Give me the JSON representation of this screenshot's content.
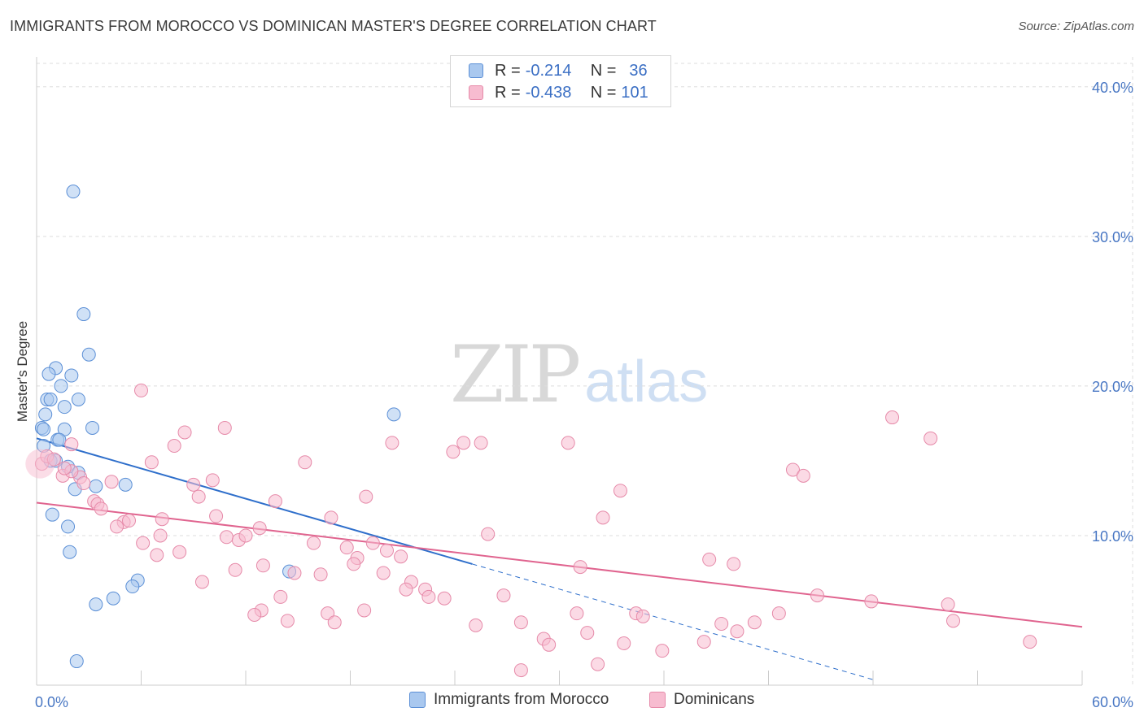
{
  "title": "IMMIGRANTS FROM MOROCCO VS DOMINICAN MASTER'S DEGREE CORRELATION CHART",
  "source": "Source: ZipAtlas.com",
  "watermark": {
    "zip": "ZIP",
    "atlas": "atlas"
  },
  "legend": {
    "series1": {
      "r_label": "R =",
      "r_value": "-0.214",
      "n_label": "N =",
      "n_value": "36"
    },
    "series2": {
      "r_label": "R =",
      "r_value": "-0.438",
      "n_label": "N =",
      "n_value": "101"
    }
  },
  "bottom_legend": {
    "series1": "Immigrants from Morocco",
    "series2": "Dominicans"
  },
  "colors": {
    "series1_fill": "#a9c8ef",
    "series1_stroke": "#5b8fd6",
    "series1_line": "#2f6fcb",
    "series2_fill": "#f7bcd0",
    "series2_stroke": "#e68aa9",
    "series2_line": "#e0648f",
    "grid": "#dddddd",
    "tick_text": "#4a78c4"
  },
  "chart_data": {
    "type": "scatter",
    "title": "IMMIGRANTS FROM MOROCCO VS DOMINICAN MASTER'S DEGREE CORRELATION CHART",
    "xlabel": "",
    "ylabel": "Master's Degree",
    "xlim": [
      0,
      60
    ],
    "ylim": [
      0,
      42
    ],
    "x_tick_labels": [
      "0.0%",
      "60.0%"
    ],
    "y_ticks": [
      10,
      20,
      30,
      40
    ],
    "y_tick_labels": [
      "10.0%",
      "20.0%",
      "30.0%",
      "40.0%"
    ],
    "grid": true,
    "legend_position": "top-center",
    "series": [
      {
        "name": "Immigrants from Morocco",
        "R": -0.214,
        "N": 36,
        "trend": {
          "x0": 0,
          "y0": 16.5,
          "x1": 25,
          "y1": 8.1,
          "dash_to_x": 48
        },
        "points": [
          [
            2.1,
            33.0
          ],
          [
            2.7,
            24.8
          ],
          [
            3.0,
            22.1
          ],
          [
            1.1,
            21.2
          ],
          [
            0.7,
            20.8
          ],
          [
            2.0,
            20.7
          ],
          [
            1.4,
            20.0
          ],
          [
            0.6,
            19.1
          ],
          [
            0.8,
            19.1
          ],
          [
            2.4,
            19.1
          ],
          [
            1.6,
            18.6
          ],
          [
            0.5,
            18.1
          ],
          [
            20.5,
            18.1
          ],
          [
            0.3,
            17.2
          ],
          [
            0.4,
            17.1
          ],
          [
            1.6,
            17.1
          ],
          [
            3.2,
            17.2
          ],
          [
            1.2,
            16.4
          ],
          [
            1.3,
            16.4
          ],
          [
            0.4,
            16.0
          ],
          [
            0.8,
            15.0
          ],
          [
            1.1,
            15.0
          ],
          [
            1.8,
            14.6
          ],
          [
            2.4,
            14.2
          ],
          [
            5.1,
            13.4
          ],
          [
            2.2,
            13.1
          ],
          [
            3.4,
            13.3
          ],
          [
            0.9,
            11.4
          ],
          [
            1.8,
            10.6
          ],
          [
            1.9,
            8.9
          ],
          [
            14.5,
            7.6
          ],
          [
            5.8,
            7.0
          ],
          [
            5.5,
            6.6
          ],
          [
            4.4,
            5.8
          ],
          [
            3.4,
            5.4
          ],
          [
            2.3,
            1.6
          ]
        ]
      },
      {
        "name": "Dominicans",
        "R": -0.438,
        "N": 101,
        "trend": {
          "x0": 0,
          "y0": 12.2,
          "x1": 60,
          "y1": 3.9
        },
        "points": [
          [
            0.3,
            14.8
          ],
          [
            6.0,
            19.7
          ],
          [
            0.6,
            15.3
          ],
          [
            1.0,
            15.1
          ],
          [
            2.0,
            16.1
          ],
          [
            8.5,
            16.9
          ],
          [
            10.8,
            17.2
          ],
          [
            7.9,
            16.0
          ],
          [
            6.6,
            14.9
          ],
          [
            15.4,
            14.9
          ],
          [
            20.4,
            16.2
          ],
          [
            24.5,
            16.2
          ],
          [
            25.5,
            16.2
          ],
          [
            30.5,
            16.2
          ],
          [
            49.1,
            17.9
          ],
          [
            51.3,
            16.5
          ],
          [
            43.4,
            14.4
          ],
          [
            44.0,
            14.0
          ],
          [
            1.5,
            14.0
          ],
          [
            2.5,
            13.9
          ],
          [
            2.7,
            13.5
          ],
          [
            4.3,
            13.6
          ],
          [
            9.0,
            13.4
          ],
          [
            10.1,
            13.7
          ],
          [
            2.0,
            14.3
          ],
          [
            9.3,
            12.6
          ],
          [
            13.7,
            12.3
          ],
          [
            18.9,
            12.6
          ],
          [
            33.5,
            13.0
          ],
          [
            3.3,
            12.3
          ],
          [
            3.5,
            12.1
          ],
          [
            3.7,
            11.8
          ],
          [
            7.2,
            11.1
          ],
          [
            10.3,
            11.3
          ],
          [
            16.9,
            11.2
          ],
          [
            32.5,
            11.2
          ],
          [
            5.0,
            10.9
          ],
          [
            5.3,
            11.0
          ],
          [
            4.6,
            10.6
          ],
          [
            12.8,
            10.5
          ],
          [
            7.1,
            10.0
          ],
          [
            10.9,
            9.9
          ],
          [
            11.6,
            9.7
          ],
          [
            6.1,
            9.5
          ],
          [
            15.9,
            9.5
          ],
          [
            17.8,
            9.2
          ],
          [
            19.3,
            9.5
          ],
          [
            20.1,
            9.0
          ],
          [
            25.9,
            10.1
          ],
          [
            6.9,
            8.7
          ],
          [
            8.2,
            8.9
          ],
          [
            18.4,
            8.5
          ],
          [
            20.9,
            8.6
          ],
          [
            11.4,
            7.7
          ],
          [
            13.0,
            8.0
          ],
          [
            14.8,
            7.5
          ],
          [
            16.3,
            7.4
          ],
          [
            19.9,
            7.5
          ],
          [
            31.2,
            7.9
          ],
          [
            38.6,
            8.4
          ],
          [
            40.0,
            8.1
          ],
          [
            9.5,
            6.9
          ],
          [
            21.5,
            6.9
          ],
          [
            21.2,
            6.4
          ],
          [
            22.3,
            6.4
          ],
          [
            22.5,
            5.9
          ],
          [
            23.4,
            5.8
          ],
          [
            14.0,
            5.9
          ],
          [
            26.8,
            6.0
          ],
          [
            44.8,
            6.0
          ],
          [
            47.9,
            5.6
          ],
          [
            52.3,
            5.4
          ],
          [
            12.9,
            5.0
          ],
          [
            12.5,
            4.7
          ],
          [
            16.7,
            4.8
          ],
          [
            18.8,
            5.0
          ],
          [
            17.1,
            4.2
          ],
          [
            14.4,
            4.3
          ],
          [
            31.0,
            4.8
          ],
          [
            34.4,
            4.8
          ],
          [
            34.8,
            4.6
          ],
          [
            42.6,
            4.8
          ],
          [
            25.2,
            4.0
          ],
          [
            27.8,
            4.2
          ],
          [
            39.3,
            4.1
          ],
          [
            40.2,
            3.6
          ],
          [
            41.2,
            4.2
          ],
          [
            52.6,
            4.3
          ],
          [
            31.6,
            3.5
          ],
          [
            29.1,
            3.1
          ],
          [
            29.4,
            2.7
          ],
          [
            33.7,
            2.8
          ],
          [
            35.9,
            2.3
          ],
          [
            38.3,
            2.9
          ],
          [
            57.0,
            2.9
          ],
          [
            27.8,
            1.0
          ],
          [
            32.2,
            1.4
          ],
          [
            23.9,
            15.6
          ],
          [
            1.6,
            14.5
          ],
          [
            12.0,
            10.0
          ],
          [
            18.2,
            8.1
          ]
        ]
      }
    ]
  }
}
